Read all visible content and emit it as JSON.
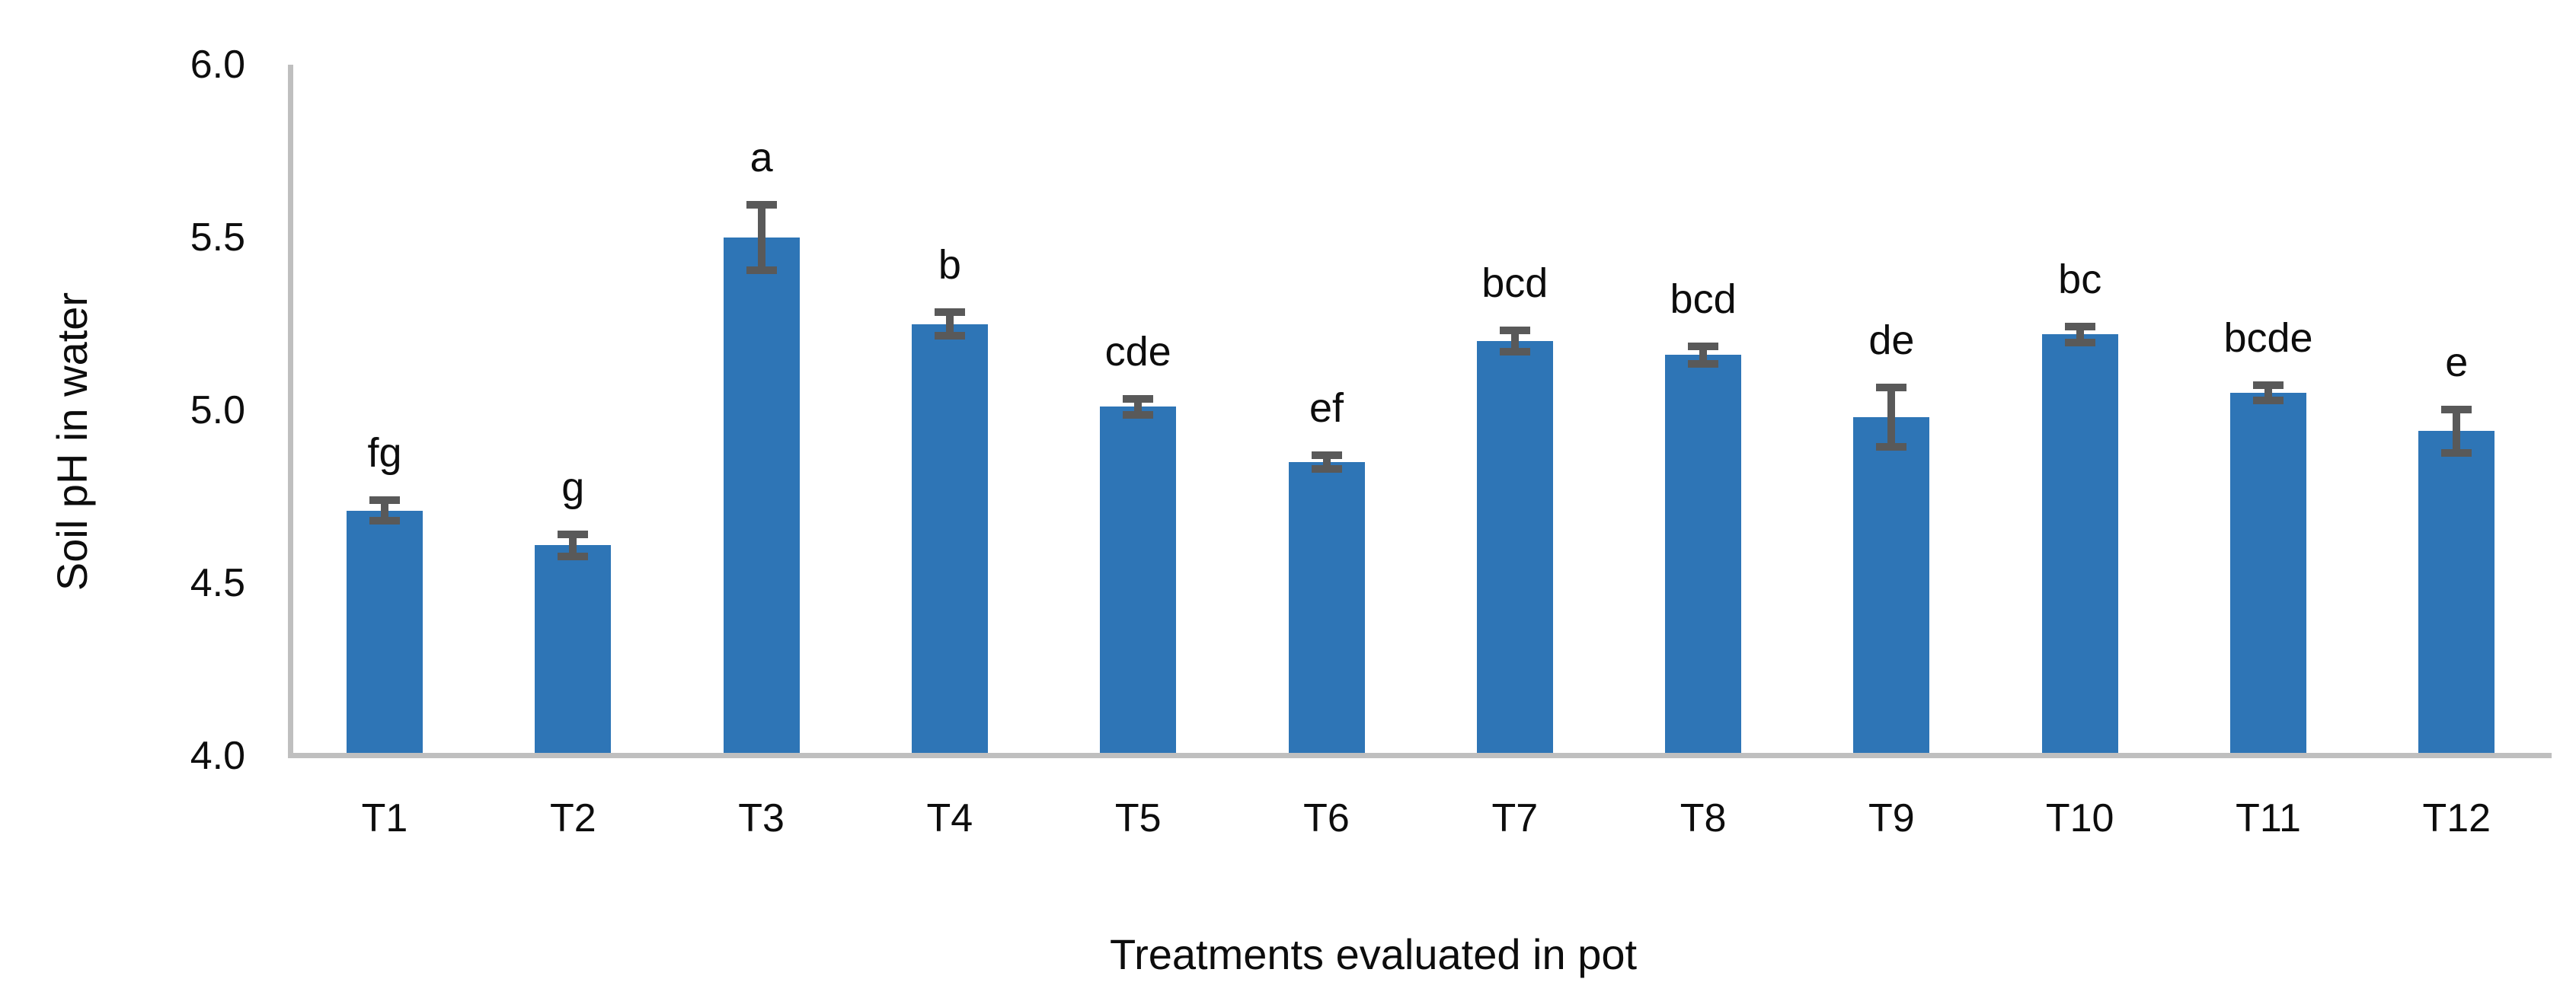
{
  "chart_data": {
    "type": "bar",
    "categories": [
      "T1",
      "T2",
      "T3",
      "T4",
      "T5",
      "T6",
      "T7",
      "T8",
      "T9",
      "T10",
      "T11",
      "T12"
    ],
    "values": [
      4.71,
      4.61,
      5.5,
      5.25,
      5.01,
      4.85,
      5.2,
      5.16,
      4.98,
      5.22,
      5.05,
      4.94
    ],
    "errors": [
      0.03,
      0.032,
      0.094,
      0.034,
      0.023,
      0.02,
      0.031,
      0.026,
      0.085,
      0.023,
      0.022,
      0.063
    ],
    "significance_letters": [
      "fg",
      "g",
      "a",
      "b",
      "cde",
      "ef",
      "bcd",
      "bcd",
      "de",
      "bc",
      "bcde",
      "e"
    ],
    "xlabel": "Treatments evaluated in pot",
    "ylabel": "Soil pH in water",
    "ylim": [
      4.0,
      6.0
    ],
    "yticks": [
      {
        "value": 6.0,
        "label": "6.0"
      },
      {
        "value": 5.5,
        "label": "5.5"
      },
      {
        "value": 5.0,
        "label": "5.0"
      },
      {
        "value": 4.5,
        "label": "4.5"
      },
      {
        "value": 4.0,
        "label": "4.0"
      }
    ],
    "grid": "off",
    "legend": "none",
    "colors": {
      "bar": "#2E75B6",
      "error_bar": "#595959",
      "axis_line": "#BFBFBF",
      "text": "#0d0d0d"
    }
  }
}
